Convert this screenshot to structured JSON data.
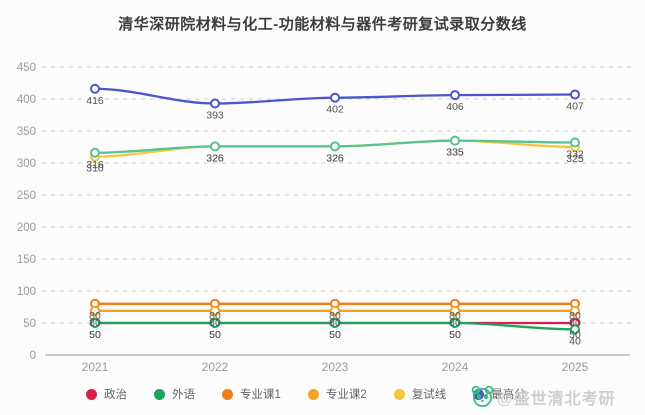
{
  "title": "清华深研院材料与化工-功能材料与器件考研复试录取分数线",
  "watermark": {
    "icon": "panda-icon",
    "text": "@盛世清北考研",
    "color": "#cecece",
    "icon_color": "#3cb882"
  },
  "axis": {
    "tick_color": "#9a9a9a",
    "grid_color": "#cccccc",
    "label_color": "#525252"
  },
  "chart_data": {
    "type": "line",
    "title": "清华深研院材料与化工-功能材料与器件考研复试录取分数线",
    "categories": [
      "2021",
      "2022",
      "2023",
      "2024",
      "2025"
    ],
    "series": [
      {
        "name": "政治",
        "color": "#d6204b",
        "values": [
          50,
          50,
          50,
          50,
          50
        ]
      },
      {
        "name": "外语",
        "color": "#1fa35c",
        "values": [
          50,
          50,
          50,
          50,
          40
        ]
      },
      {
        "name": "专业课1",
        "color": "#f07c1d",
        "values": [
          80,
          80,
          80,
          80,
          80
        ]
      },
      {
        "name": "专业课2",
        "color": "#f3a229",
        "values": [
          80,
          80,
          80,
          80,
          80
        ],
        "render_offset_y": 7
      },
      {
        "name": "复试线",
        "color": "#f7c73a",
        "values": [
          310,
          326,
          326,
          335,
          325
        ]
      },
      {
        "name": "最高分",
        "color": "#4a56cc",
        "values": [
          416,
          393,
          402,
          406,
          407
        ]
      },
      {
        "name": "最低分",
        "color": "#55c492",
        "values": [
          316,
          326,
          326,
          335,
          332
        ],
        "legend_hidden_by_watermark": true
      }
    ],
    "xlabel": "",
    "ylabel": "",
    "ylim": [
      0,
      450
    ],
    "ytick_step": 50,
    "grid": "horizontal-dashed",
    "legend_position": "bottom",
    "point_labels": "below-each-point"
  }
}
